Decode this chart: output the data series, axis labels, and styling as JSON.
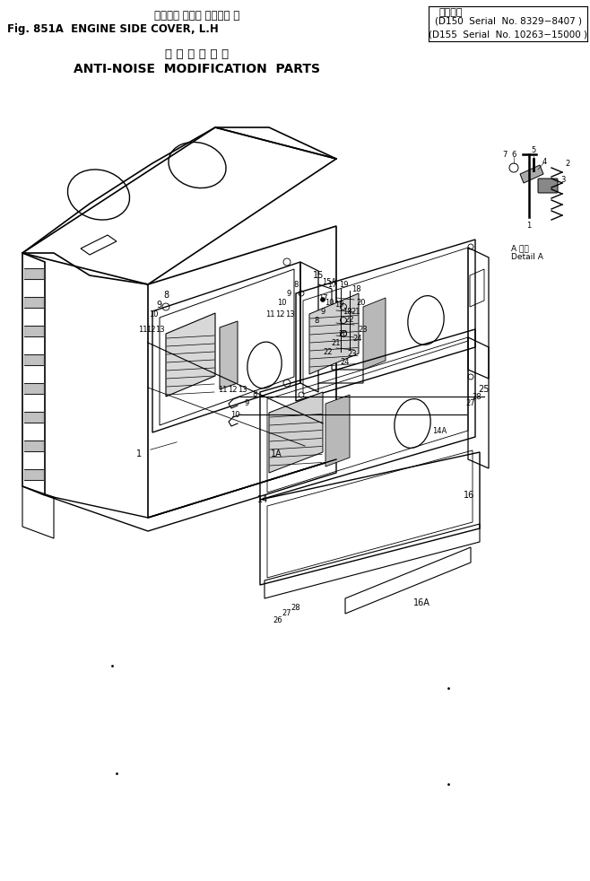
{
  "bg_color": "#ffffff",
  "fig_width": 6.58,
  "fig_height": 9.82,
  "dpi": 100,
  "title_jp": "エンジン サイド カバー， 左",
  "title_right_label": "適用号機",
  "title_fig": "Fig. 851A  ENGINE SIDE COVER, L.H",
  "title_d150": "(D150  Serial  No. 8329−8407 )",
  "title_d155": "(D155  Serial  No. 10263−15000 )",
  "subtitle_jp": "騒 音 対 策 部 品",
  "subtitle_en": "ANTI-NOISE  MODIFICATION  PARTS",
  "detail_a_label": "A 詳細\nDetail A"
}
